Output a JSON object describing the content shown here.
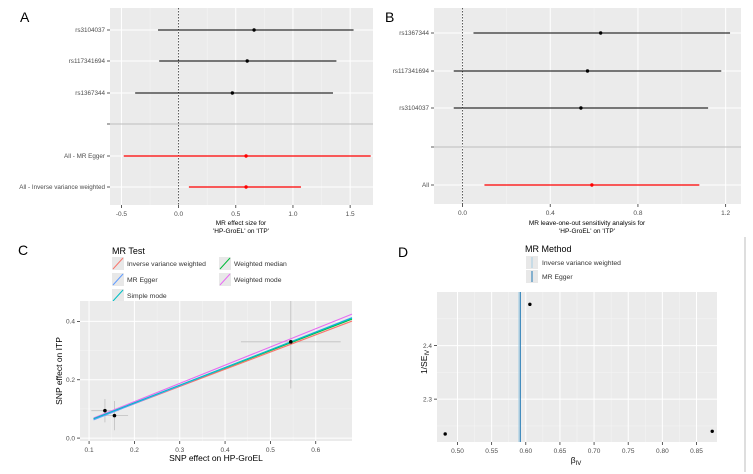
{
  "chart_data": [
    {
      "panel_label": "A",
      "type": "forest",
      "xlabel_line1": "MR effect size for",
      "xlabel_line2": "'HP-GroEL' on 'ITP'",
      "xlim": [
        -0.6,
        1.7
      ],
      "x_ticks": [
        "-0.5",
        "0.0",
        "0.5",
        "1.0",
        "1.5"
      ],
      "x_tick_values": [
        -0.5,
        0.0,
        0.5,
        1.0,
        1.5
      ],
      "rows": [
        {
          "label": "rs3104037",
          "estimate": 0.66,
          "lower": -0.18,
          "upper": 1.53,
          "color": "#000000"
        },
        {
          "label": "rs117341694",
          "estimate": 0.6,
          "lower": -0.17,
          "upper": 1.38,
          "color": "#000000"
        },
        {
          "label": "rs1367344",
          "estimate": 0.47,
          "lower": -0.38,
          "upper": 1.35,
          "color": "#000000"
        },
        {
          "label": "",
          "separator": true
        },
        {
          "label": "All - MR Egger",
          "estimate": 0.59,
          "lower": -0.48,
          "upper": 1.68,
          "color": "#ff0000"
        },
        {
          "label": "All - Inverse variance weighted",
          "estimate": 0.59,
          "lower": 0.09,
          "upper": 1.07,
          "color": "#ff0000"
        }
      ]
    },
    {
      "panel_label": "B",
      "type": "forest",
      "xlabel_line1": "MR leave-one-out sensitivity analysis for",
      "xlabel_line2": "'HP-GroEL' on 'ITP'",
      "xlim": [
        -0.13,
        1.27
      ],
      "x_ticks": [
        "0.0",
        "0.4",
        "0.8",
        "1.2"
      ],
      "x_tick_values": [
        0.0,
        0.4,
        0.8,
        1.2
      ],
      "rows": [
        {
          "label": "rs1367344",
          "estimate": 0.63,
          "lower": 0.05,
          "upper": 1.22,
          "color": "#000000"
        },
        {
          "label": "rs117341694",
          "estimate": 0.57,
          "lower": -0.04,
          "upper": 1.18,
          "color": "#000000"
        },
        {
          "label": "rs3104037",
          "estimate": 0.54,
          "lower": -0.04,
          "upper": 1.12,
          "color": "#000000"
        },
        {
          "label": "",
          "separator": true
        },
        {
          "label": "All",
          "estimate": 0.59,
          "lower": 0.1,
          "upper": 1.08,
          "color": "#ff0000"
        }
      ]
    },
    {
      "panel_label": "C",
      "type": "scatter",
      "legend_title": "MR Test",
      "legend_items": [
        {
          "label": "Inverse variance weighted",
          "color": "#f8766d"
        },
        {
          "label": "Weighted median",
          "color": "#00ba38"
        },
        {
          "label": "MR Egger",
          "color": "#619cff"
        },
        {
          "label": "Weighted mode",
          "color": "#e76bf3"
        },
        {
          "label": "Simple mode",
          "color": "#00bfc4"
        }
      ],
      "xlabel": "SNP effect on HP-GroEL",
      "ylabel": "SNP effect on ITP",
      "xlim": [
        0.08,
        0.68
      ],
      "ylim": [
        -0.01,
        0.47
      ],
      "x_ticks": [
        "0.1",
        "0.2",
        "0.3",
        "0.4",
        "0.5",
        "0.6"
      ],
      "x_tick_values": [
        0.1,
        0.2,
        0.3,
        0.4,
        0.5,
        0.6
      ],
      "y_ticks": [
        "0.0",
        "0.2",
        "0.4"
      ],
      "y_tick_values": [
        0.0,
        0.2,
        0.4
      ],
      "points": [
        {
          "x": 0.135,
          "y": 0.094,
          "xerr": 0.03,
          "yerr": 0.04
        },
        {
          "x": 0.156,
          "y": 0.077,
          "xerr": 0.03,
          "yerr": 0.05
        },
        {
          "x": 0.545,
          "y": 0.33,
          "xerr": 0.11,
          "yerr": 0.16
        }
      ],
      "lines": [
        {
          "method": "Inverse variance weighted",
          "intercept": 0.0,
          "slope": 0.59,
          "color": "#f8766d"
        },
        {
          "method": "Weighted median",
          "intercept": 0.0,
          "slope": 0.6,
          "color": "#00ba38"
        },
        {
          "method": "MR Egger",
          "intercept": -0.005,
          "slope": 0.615,
          "color": "#619cff"
        },
        {
          "method": "Weighted mode",
          "intercept": 0.0,
          "slope": 0.625,
          "color": "#e76bf3"
        },
        {
          "method": "Simple mode",
          "intercept": 0.0,
          "slope": 0.605,
          "color": "#00bfc4"
        }
      ]
    },
    {
      "panel_label": "D",
      "type": "funnel",
      "legend_title": "MR Method",
      "legend_items": [
        {
          "label": "Inverse variance weighted",
          "color": "#a6cee3"
        },
        {
          "label": "MR Egger",
          "color": "#1f78b4"
        }
      ],
      "xlabel": "βIV",
      "xlabel_base": "β",
      "xlabel_sub": "IV",
      "ylabel": "1/SEIV",
      "ylabel_main": "1/SE",
      "ylabel_sub": "IV",
      "xlim": [
        0.47,
        0.88
      ],
      "ylim": [
        2.22,
        2.5
      ],
      "x_ticks": [
        "0.50",
        "0.55",
        "0.60",
        "0.65",
        "0.70",
        "0.75",
        "0.80",
        "0.85"
      ],
      "x_tick_values": [
        0.5,
        0.55,
        0.6,
        0.65,
        0.7,
        0.75,
        0.8,
        0.85
      ],
      "y_ticks": [
        "2.3",
        "2.4"
      ],
      "y_tick_values": [
        2.3,
        2.4
      ],
      "points": [
        {
          "x": 0.482,
          "y": 2.235
        },
        {
          "x": 0.606,
          "y": 2.477
        },
        {
          "x": 0.873,
          "y": 2.24
        }
      ],
      "vlines": [
        {
          "method": "Inverse variance weighted",
          "x": 0.59,
          "color": "#a6cee3"
        },
        {
          "method": "MR Egger",
          "x": 0.592,
          "color": "#1f78b4"
        }
      ]
    }
  ]
}
